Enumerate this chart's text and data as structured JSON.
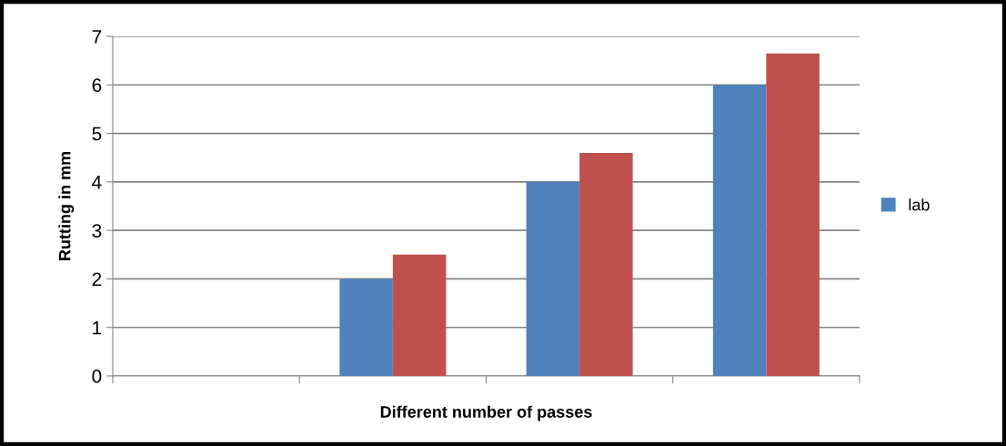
{
  "chart_data": {
    "type": "bar",
    "xlabel": "Different number of passes",
    "ylabel": "Rutting in mm",
    "categories": [
      null,
      null,
      null,
      null
    ],
    "series": [
      {
        "name": "lab",
        "color": "#4f81bd",
        "values": [
          null,
          2,
          4,
          6
        ]
      },
      {
        "color": "#c0504d",
        "values": [
          null,
          2.5,
          4.6,
          6.65
        ]
      }
    ],
    "ylim": [
      0,
      7
    ],
    "yticks": [
      0,
      1,
      2,
      3,
      4,
      5,
      6,
      7
    ],
    "grid": "y",
    "legend": "right"
  }
}
